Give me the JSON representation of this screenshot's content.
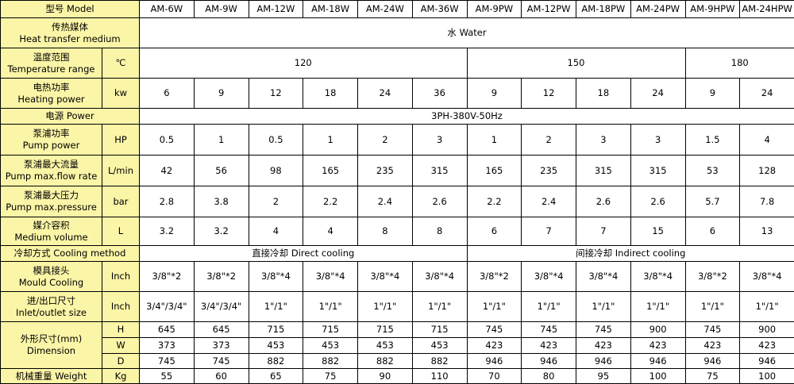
{
  "header": {
    "label": "型号 Model",
    "models": [
      "AM-6W",
      "AM-9W",
      "AM-12W",
      "AM-18W",
      "AM-24W",
      "AM-36W",
      "AM-9PW",
      "AM-12PW",
      "AM-18PW",
      "AM-24PW",
      "AM-9HPW",
      "AM-24HPW"
    ]
  },
  "medium": {
    "cn": "传热媒体",
    "en": "Heat transfer medium",
    "value": "水 Water"
  },
  "temperature": {
    "cn": "温度范围",
    "en": "Temperature range",
    "unit": "℃",
    "values": [
      "120",
      "150",
      "180"
    ]
  },
  "heating": {
    "cn": "电热功率",
    "en": "Heating power",
    "unit": "kw",
    "values": [
      "6",
      "9",
      "12",
      "18",
      "24",
      "36",
      "9",
      "12",
      "18",
      "24",
      "9",
      "24"
    ]
  },
  "power": {
    "label": "电源  Power",
    "value": "3PH-380V-50Hz"
  },
  "pump_power": {
    "cn": "泵浦功率",
    "en": "Pump power",
    "unit": "HP",
    "values": [
      "0.5",
      "1",
      "0.5",
      "1",
      "2",
      "3",
      "1",
      "2",
      "3",
      "3",
      "1.5",
      "4"
    ]
  },
  "flow": {
    "cn": "泵浦最大流量",
    "en": "Pump max.flow rate",
    "unit": "L/min",
    "values": [
      "42",
      "56",
      "98",
      "165",
      "235",
      "315",
      "165",
      "235",
      "315",
      "315",
      "53",
      "128"
    ]
  },
  "pressure": {
    "cn": "泵浦最大压力",
    "en": "Pump max.pressure",
    "unit": "bar",
    "values": [
      "2.8",
      "3.8",
      "2",
      "2.2",
      "2.4",
      "2.6",
      "2.2",
      "2.4",
      "2.6",
      "2.6",
      "5.7",
      "7.8"
    ]
  },
  "volume": {
    "cn": "媒介容积",
    "en": "Medium volume",
    "unit": "L",
    "values": [
      "3.2",
      "3.2",
      "4",
      "4",
      "8",
      "8",
      "6",
      "7",
      "7",
      "15",
      "6",
      "13"
    ]
  },
  "cooling": {
    "label": "冷却方式  Cooling method",
    "direct": "直接冷却 Direct cooling",
    "indirect": "间接冷却 Indirect cooling"
  },
  "mould": {
    "cn": "模具接头",
    "en": "Mould Cooling",
    "unit": "Inch",
    "values": [
      "3/8\"*2",
      "3/8\"*2",
      "3/8\"*4",
      "3/8\"*4",
      "3/8\"*4",
      "3/8\"*4",
      "3/8\"*2",
      "3/8\"*4",
      "3/8\"*4",
      "3/8\"*4",
      "3/8\"*2",
      "3/8\"*4"
    ]
  },
  "inlet": {
    "cn": "进/出口尺寸",
    "en": "Inlet/outlet size",
    "unit": "Inch",
    "values": [
      "3/4\"/3/4\"",
      "3/4\"/3/4\"",
      "1\"/1\"",
      "1\"/1\"",
      "1\"/1\"",
      "1\"/1\"",
      "1\"/1\"",
      "1\"/1\"",
      "1\"/1\"",
      "1\"/1\"",
      "1\"/1\"",
      "1\"/1\""
    ]
  },
  "dimension": {
    "cn": "外形尺寸(mm)",
    "en": "Dimension",
    "rows": [
      {
        "unit": "H",
        "values": [
          "645",
          "645",
          "715",
          "715",
          "715",
          "715",
          "745",
          "745",
          "745",
          "900",
          "745",
          "900"
        ]
      },
      {
        "unit": "W",
        "values": [
          "373",
          "373",
          "453",
          "453",
          "453",
          "453",
          "423",
          "423",
          "423",
          "423",
          "423",
          "423"
        ]
      },
      {
        "unit": "D",
        "values": [
          "745",
          "745",
          "882",
          "882",
          "882",
          "882",
          "946",
          "946",
          "946",
          "946",
          "946",
          "946"
        ]
      }
    ]
  },
  "weight": {
    "label": "机械重量  Weight",
    "unit": "Kg",
    "values": [
      "55",
      "60",
      "65",
      "75",
      "90",
      "110",
      "70",
      "80",
      "95",
      "100",
      "75",
      "100"
    ]
  }
}
